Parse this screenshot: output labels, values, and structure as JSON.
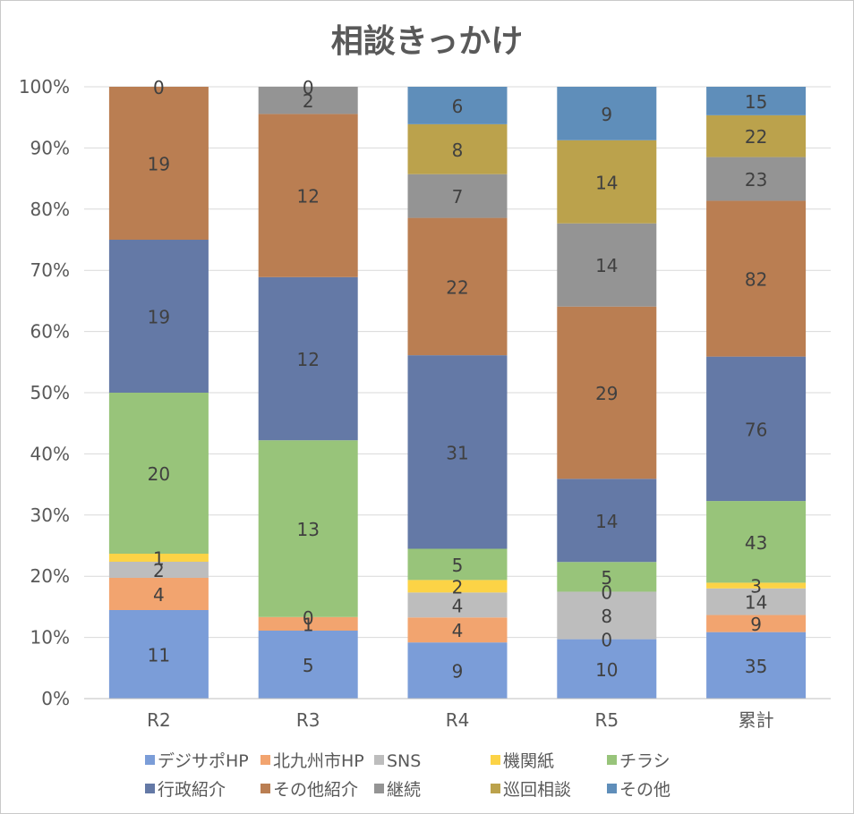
{
  "chart_data": {
    "type": "bar",
    "stacked": "percent",
    "title": "相談きっかけ",
    "xlabel": "",
    "ylabel": "",
    "ylim": [
      0,
      100
    ],
    "yticks": [
      "0%",
      "10%",
      "20%",
      "30%",
      "40%",
      "50%",
      "60%",
      "70%",
      "80%",
      "90%",
      "100%"
    ],
    "categories": [
      "R2",
      "R3",
      "R4",
      "R5",
      "累計"
    ],
    "legend_position": "bottom",
    "series": [
      {
        "name": "デジサポHP",
        "color": "#7b9dd8",
        "values": [
          11,
          5,
          9,
          10,
          35
        ]
      },
      {
        "name": "北九州市HP",
        "color": "#f2a46f",
        "values": [
          4,
          1,
          4,
          0,
          9
        ]
      },
      {
        "name": "SNS",
        "color": "#bdbdbd",
        "values": [
          2,
          0,
          4,
          8,
          14
        ]
      },
      {
        "name": "機関紙",
        "color": "#fcd346",
        "values": [
          1,
          0,
          2,
          0,
          3
        ]
      },
      {
        "name": "チラシ",
        "color": "#98c47a",
        "values": [
          20,
          13,
          5,
          5,
          43
        ]
      },
      {
        "name": "行政紹介",
        "color": "#6479a6",
        "values": [
          19,
          12,
          31,
          14,
          76
        ]
      },
      {
        "name": "その他紹介",
        "color": "#ba7e52",
        "values": [
          19,
          12,
          22,
          29,
          82
        ]
      },
      {
        "name": "継続",
        "color": "#949494",
        "values": [
          0,
          2,
          7,
          14,
          23
        ]
      },
      {
        "name": "巡回相談",
        "color": "#bba24c",
        "values": [
          0,
          0,
          8,
          14,
          22
        ]
      },
      {
        "name": "その他",
        "color": "#5f8eba",
        "values": [
          0,
          0,
          6,
          9,
          15
        ]
      }
    ],
    "data_labels": [
      [
        "11",
        "4",
        "2",
        "1",
        "20",
        "19",
        "19",
        "0"
      ],
      [
        "5",
        "1",
        "0",
        "13",
        "12",
        "12",
        "2",
        "0"
      ],
      [
        "9",
        "4",
        "4",
        "2",
        "5",
        "31",
        "22",
        "7",
        "8",
        "6"
      ],
      [
        "10",
        "0",
        "8",
        "0",
        "5",
        "14",
        "29",
        "14",
        "14",
        "9"
      ],
      [
        "35",
        "9",
        "14",
        "3",
        "43",
        "76",
        "82",
        "23",
        "22",
        "15"
      ]
    ]
  }
}
